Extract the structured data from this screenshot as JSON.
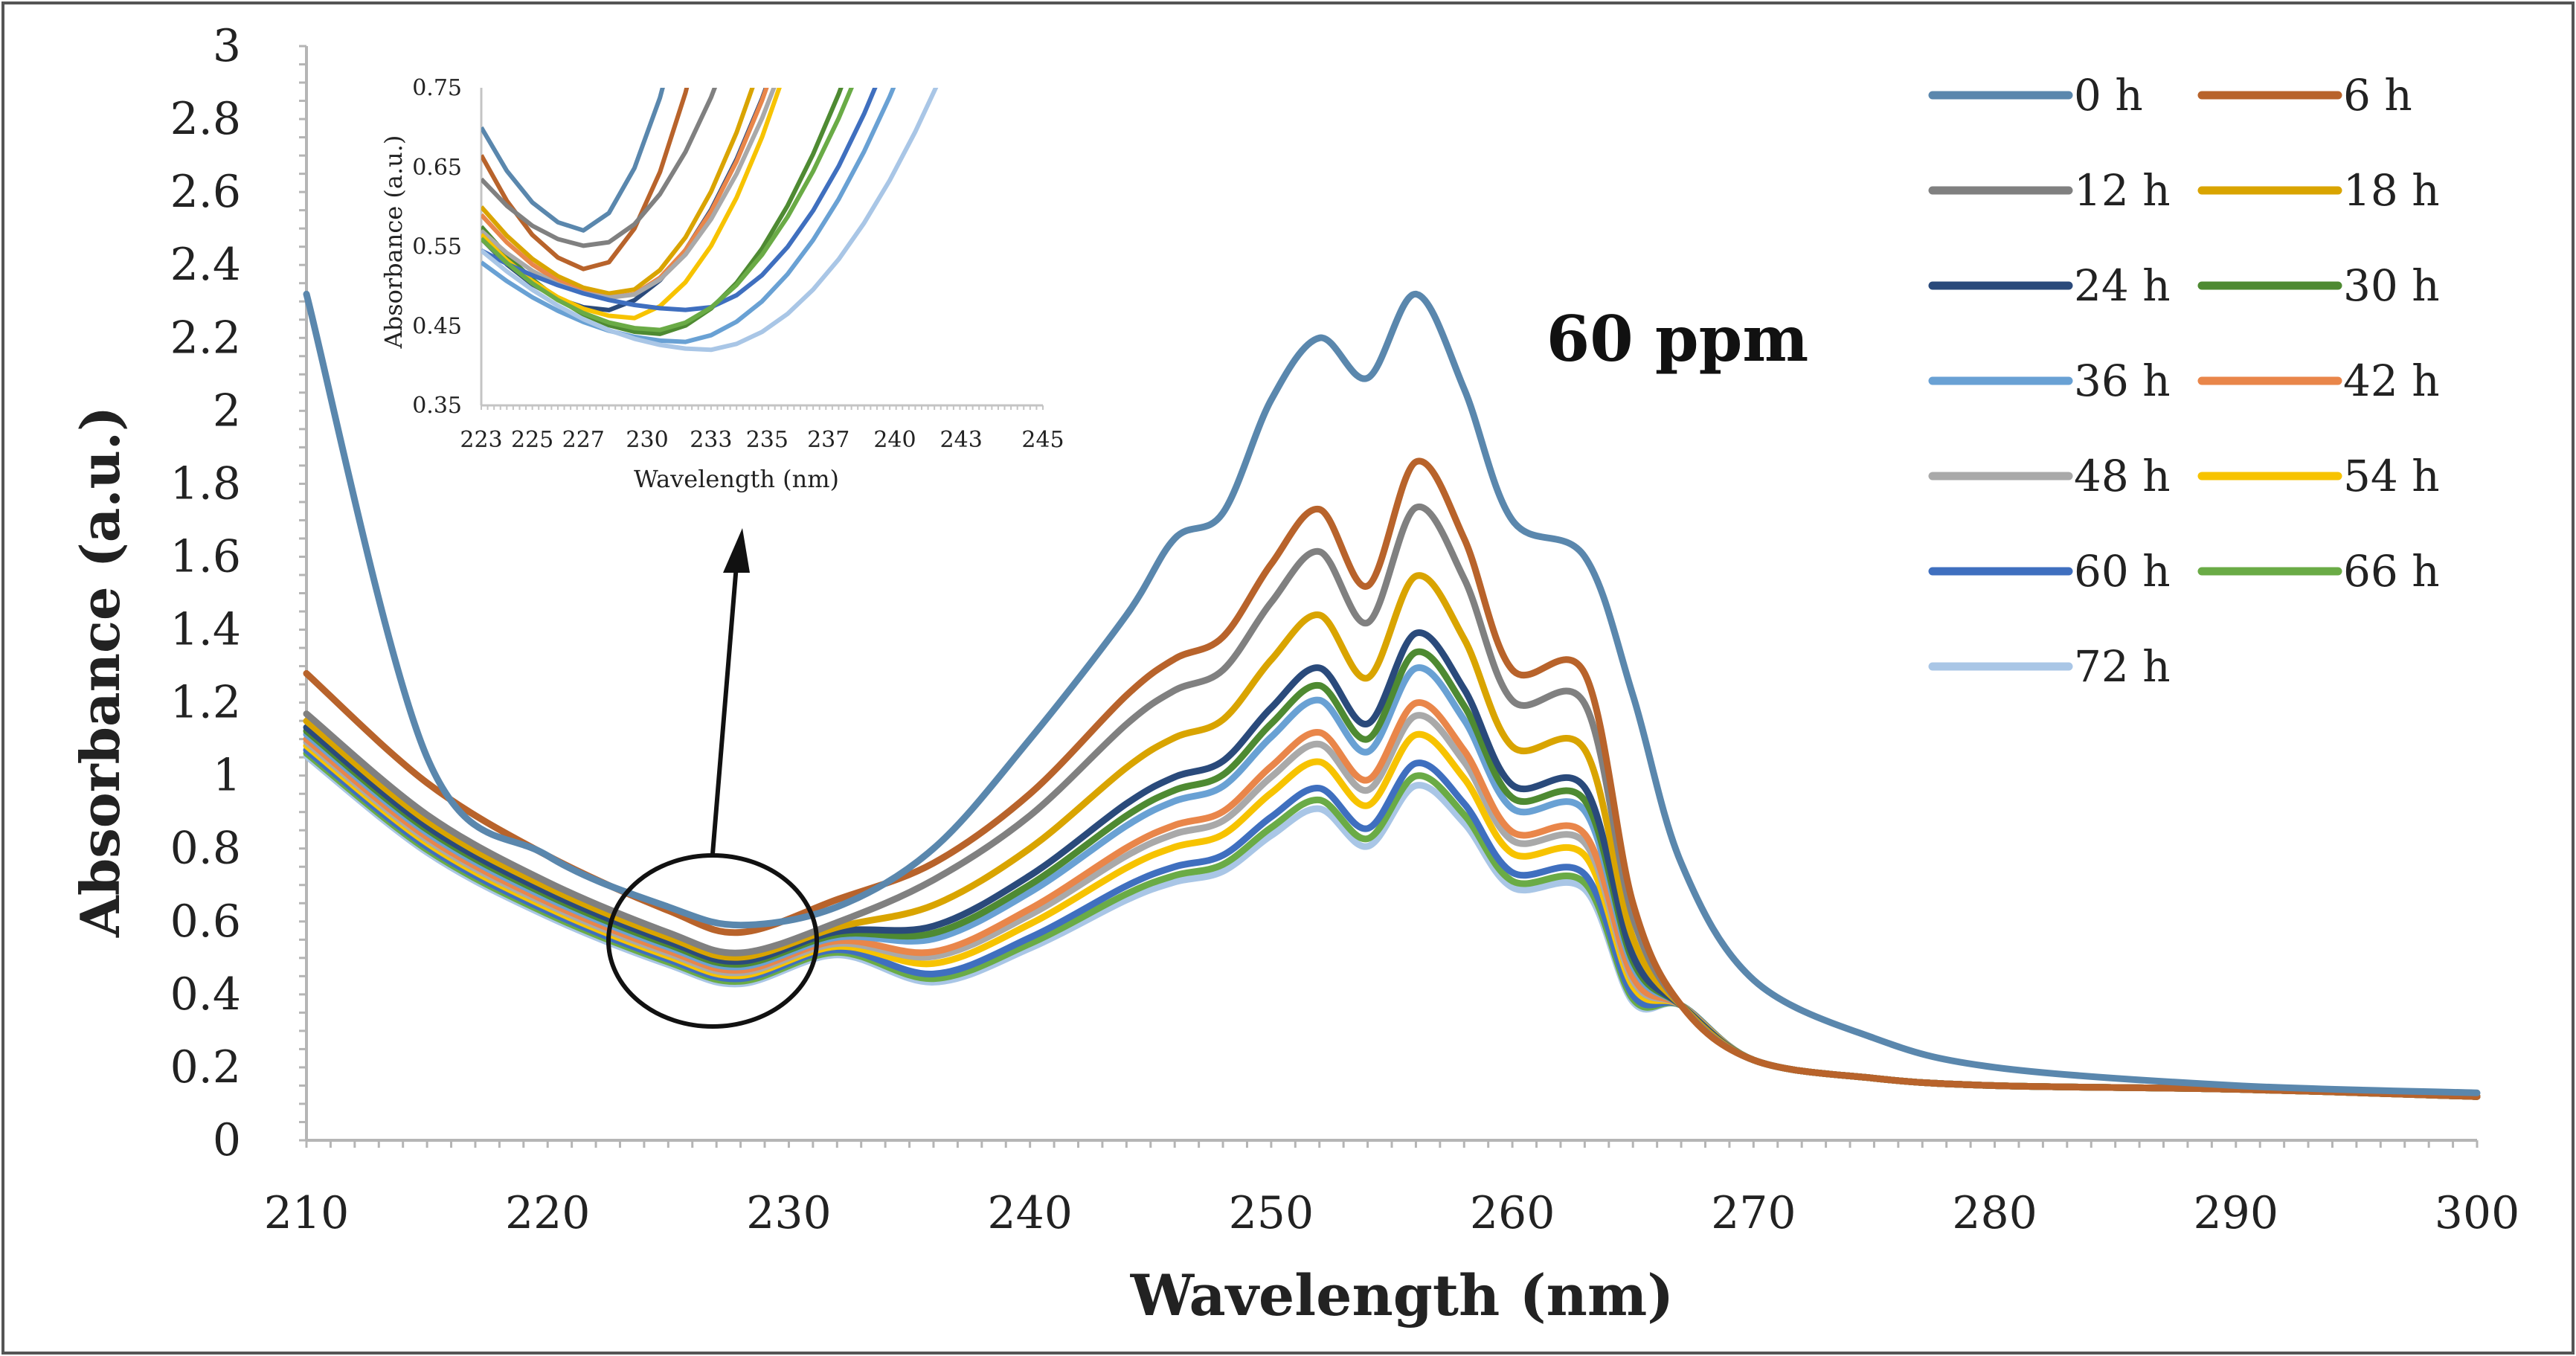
{
  "chart_data": {
    "type": "line",
    "title": "",
    "xlabel": "Wavelength (nm)",
    "ylabel": "Absorbance (a.u.)",
    "annotation": "60 ppm",
    "xlim": [
      210,
      300
    ],
    "ylim": [
      0,
      3
    ],
    "x_ticks": [
      "210",
      "220",
      "230",
      "240",
      "250",
      "260",
      "270",
      "280",
      "290",
      "300"
    ],
    "y_ticks": [
      "0",
      "0.2",
      "0.4",
      "0.6",
      "0.8",
      "1",
      "1.2",
      "1.4",
      "1.6",
      "1.8",
      "2",
      "2.2",
      "2.4",
      "2.6",
      "2.8",
      "3"
    ],
    "legend_position": "top-right",
    "x": [
      210,
      215,
      220,
      225,
      228,
      232,
      236,
      240,
      244,
      246,
      248,
      250,
      252,
      254,
      256,
      258,
      260,
      263,
      265,
      267,
      270,
      275,
      280,
      290,
      300
    ],
    "series": [
      {
        "name": "0 h",
        "color": "#5a87ad",
        "scale": 1.0,
        "values": [
          2.32,
          1.05,
          0.78,
          0.64,
          0.59,
          0.64,
          0.8,
          1.1,
          1.44,
          1.65,
          1.72,
          2.03,
          2.2,
          2.09,
          2.32,
          2.06,
          1.7,
          1.6,
          1.22,
          0.76,
          0.44,
          0.28,
          0.2,
          0.15,
          0.13
        ]
      },
      {
        "name": "6 h",
        "color": "#b8632b",
        "scale": 1.0,
        "values": [
          1.28,
          0.98,
          0.78,
          0.63,
          0.57,
          0.66,
          0.76,
          0.95,
          1.22,
          1.32,
          1.38,
          1.58,
          1.73,
          1.52,
          1.86,
          1.65,
          1.29,
          1.28,
          0.65,
          0.37,
          0.22,
          0.17,
          0.15,
          0.14,
          0.12
        ]
      },
      {
        "name": "12 h",
        "scale": 0.928,
        "color": "#808080"
      },
      {
        "name": "18 h",
        "scale": 0.82,
        "color": "#d9a400"
      },
      {
        "name": "24 h",
        "scale": 0.73,
        "color": "#2a4a7b"
      },
      {
        "name": "30 h",
        "scale": 0.7,
        "color": "#4e8a32"
      },
      {
        "name": "36 h",
        "scale": 0.675,
        "color": "#69a1d4"
      },
      {
        "name": "42 h",
        "scale": 0.62,
        "color": "#e9864a"
      },
      {
        "name": "48 h",
        "scale": 0.6,
        "color": "#a9a9a9"
      },
      {
        "name": "54 h",
        "scale": 0.57,
        "color": "#f7c300"
      },
      {
        "name": "60 h",
        "scale": 0.525,
        "color": "#3f6fbf"
      },
      {
        "name": "66 h",
        "scale": 0.505,
        "color": "#6aab46"
      },
      {
        "name": "72 h",
        "scale": 0.49,
        "color": "#a9c6e6"
      }
    ],
    "inset": {
      "type": "line",
      "xlabel": "Wavelength (nm)",
      "ylabel": "Absorbance (a.u.)",
      "xlim": [
        223,
        245
      ],
      "ylim": [
        0.35,
        0.75
      ],
      "x_ticks": [
        "223",
        "225",
        "227",
        "230",
        "233",
        "235",
        "237",
        "240",
        "243",
        "245"
      ],
      "y_ticks": [
        "0.35",
        "0.45",
        "0.55",
        "0.65",
        "0.75"
      ]
    }
  }
}
